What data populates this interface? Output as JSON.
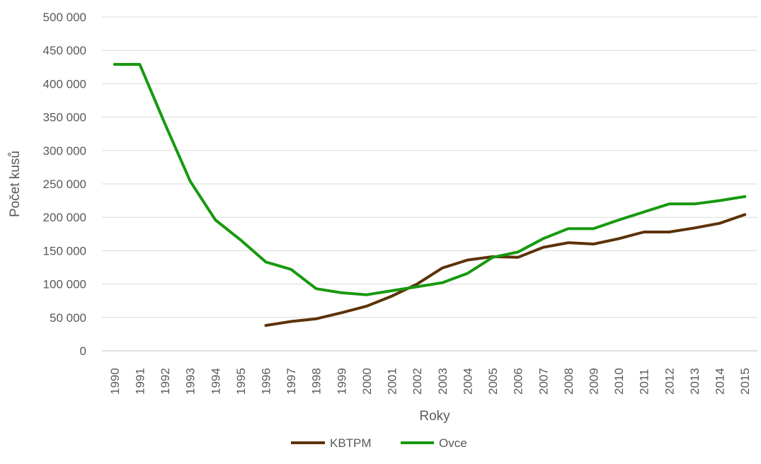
{
  "chart_data": {
    "type": "line",
    "title": "",
    "xlabel": "Roky",
    "ylabel": "Počet kusů",
    "ylim": [
      0,
      500000
    ],
    "yticks": [
      0,
      50000,
      100000,
      150000,
      200000,
      250000,
      300000,
      350000,
      400000,
      450000,
      500000
    ],
    "ytick_labels": [
      "0",
      "50 000",
      "100 000",
      "150 000",
      "200 000",
      "250 000",
      "300 000",
      "350 000",
      "400 000",
      "450 000",
      "500 000"
    ],
    "grid": true,
    "legend_position": "bottom",
    "categories": [
      "1990",
      "1991",
      "1992",
      "1993",
      "1994",
      "1995",
      "1996",
      "1997",
      "1998",
      "1999",
      "2000",
      "2001",
      "2002",
      "2003",
      "2004",
      "2005",
      "2006",
      "2007",
      "2008",
      "2009",
      "2010",
      "2011",
      "2012",
      "2013",
      "2014",
      "2015"
    ],
    "series": [
      {
        "name": "KBTPM",
        "color": "#5c3208",
        "values": [
          null,
          null,
          null,
          null,
          null,
          null,
          38000,
          44000,
          48000,
          57000,
          67000,
          82000,
          100000,
          124000,
          136000,
          141000,
          140000,
          155000,
          162000,
          160000,
          168000,
          178000,
          178000,
          184000,
          191000,
          204000
        ]
      },
      {
        "name": "Ovce",
        "color": "#17990f",
        "values": [
          429000,
          429000,
          340000,
          254000,
          196000,
          166000,
          133000,
          122000,
          93000,
          87000,
          84000,
          90000,
          96000,
          102000,
          116000,
          140000,
          148000,
          168000,
          183000,
          183000,
          196000,
          208000,
          220000,
          220000,
          225000,
          231000
        ]
      }
    ]
  }
}
